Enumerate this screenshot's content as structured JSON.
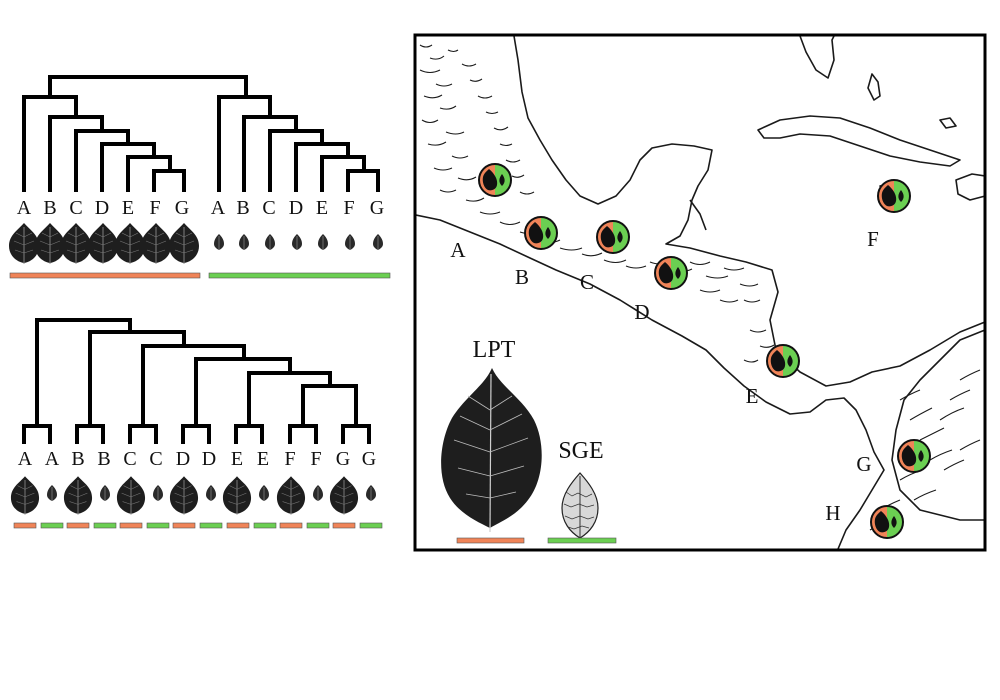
{
  "colors": {
    "lpt": "#f08458",
    "sge": "#6bcf52",
    "ink": "#1e1e1e"
  },
  "tree_top": {
    "lpt_tips": [
      "A",
      "B",
      "C",
      "D",
      "E",
      "F",
      "G"
    ],
    "sge_tips": [
      "A",
      "B",
      "C",
      "D",
      "E",
      "F",
      "G"
    ]
  },
  "tree_bottom": {
    "tips": [
      "A",
      "A",
      "B",
      "B",
      "C",
      "C",
      "D",
      "D",
      "E",
      "E",
      "F",
      "F",
      "G",
      "G"
    ]
  },
  "map": {
    "site_labels": [
      "A",
      "B",
      "C",
      "D",
      "E",
      "F",
      "G",
      "H"
    ]
  },
  "legend": {
    "lpt_label": "LPT",
    "sge_label": "SGE"
  }
}
